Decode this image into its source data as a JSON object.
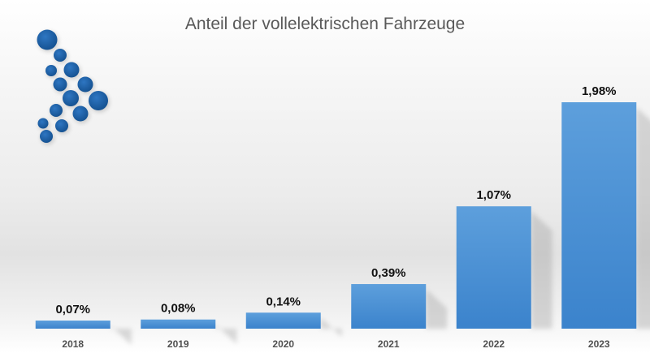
{
  "chart_data": {
    "type": "bar",
    "title": "Anteil der vollelektrischen Fahrzeuge",
    "categories": [
      "2018",
      "2019",
      "2020",
      "2021",
      "2022",
      "2023"
    ],
    "values": [
      0.07,
      0.08,
      0.14,
      0.39,
      1.07,
      1.98
    ],
    "value_labels": [
      "0,07%",
      "0,08%",
      "0,14%",
      "0,39%",
      "1,07%",
      "1,98%"
    ],
    "unit": "%",
    "ylim": [
      0,
      2.2
    ],
    "grid": false,
    "legend": "none",
    "colors": {
      "bar_top": "#5d9fdc",
      "bar_bottom": "#3b83cc",
      "logo_blue": "#1d5fa8"
    }
  },
  "logo": {
    "icon": "bubble-cluster-logo-icon"
  }
}
